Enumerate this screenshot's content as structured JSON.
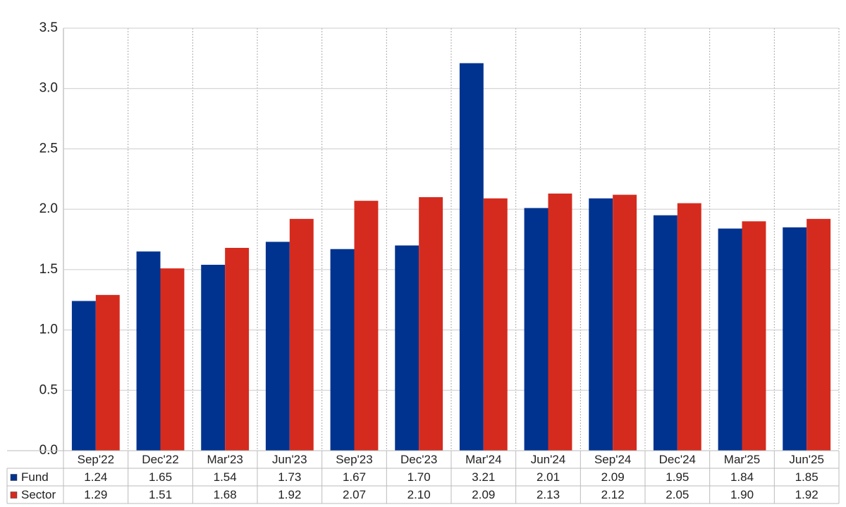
{
  "chart_data": {
    "type": "bar",
    "categories": [
      "Sep'22",
      "Dec'22",
      "Mar'23",
      "Jun'23",
      "Sep'23",
      "Dec'23",
      "Mar'24",
      "Jun'24",
      "Sep'24",
      "Dec'24",
      "Mar'25",
      "Jun'25"
    ],
    "series": [
      {
        "name": "Fund",
        "color": "#00338f",
        "values": [
          1.24,
          1.65,
          1.54,
          1.73,
          1.67,
          1.7,
          3.21,
          2.01,
          2.09,
          1.95,
          1.84,
          1.85
        ],
        "value_labels": [
          "1.24",
          "1.65",
          "1.54",
          "1.73",
          "1.67",
          "1.70",
          "3.21",
          "2.01",
          "2.09",
          "1.95",
          "1.84",
          "1.85"
        ]
      },
      {
        "name": "Sector",
        "color": "#d52b1e",
        "values": [
          1.29,
          1.51,
          1.68,
          1.92,
          2.07,
          2.1,
          2.09,
          2.13,
          2.12,
          2.05,
          1.9,
          1.92
        ],
        "value_labels": [
          "1.29",
          "1.51",
          "1.68",
          "1.92",
          "2.07",
          "2.10",
          "2.09",
          "2.13",
          "2.12",
          "2.05",
          "1.90",
          "1.92"
        ]
      }
    ],
    "ylim": [
      0,
      3.5
    ],
    "yticks": [
      {
        "value": 0,
        "label": "0.0"
      },
      {
        "value": 0.5,
        "label": "0.5"
      },
      {
        "value": 1,
        "label": "1.0"
      },
      {
        "value": 1.5,
        "label": "1.5"
      },
      {
        "value": 2,
        "label": "2.0"
      },
      {
        "value": 2.5,
        "label": "2.5"
      },
      {
        "value": 3,
        "label": "3.0"
      },
      {
        "value": 3.5,
        "label": "3.5"
      }
    ],
    "grid": true
  }
}
